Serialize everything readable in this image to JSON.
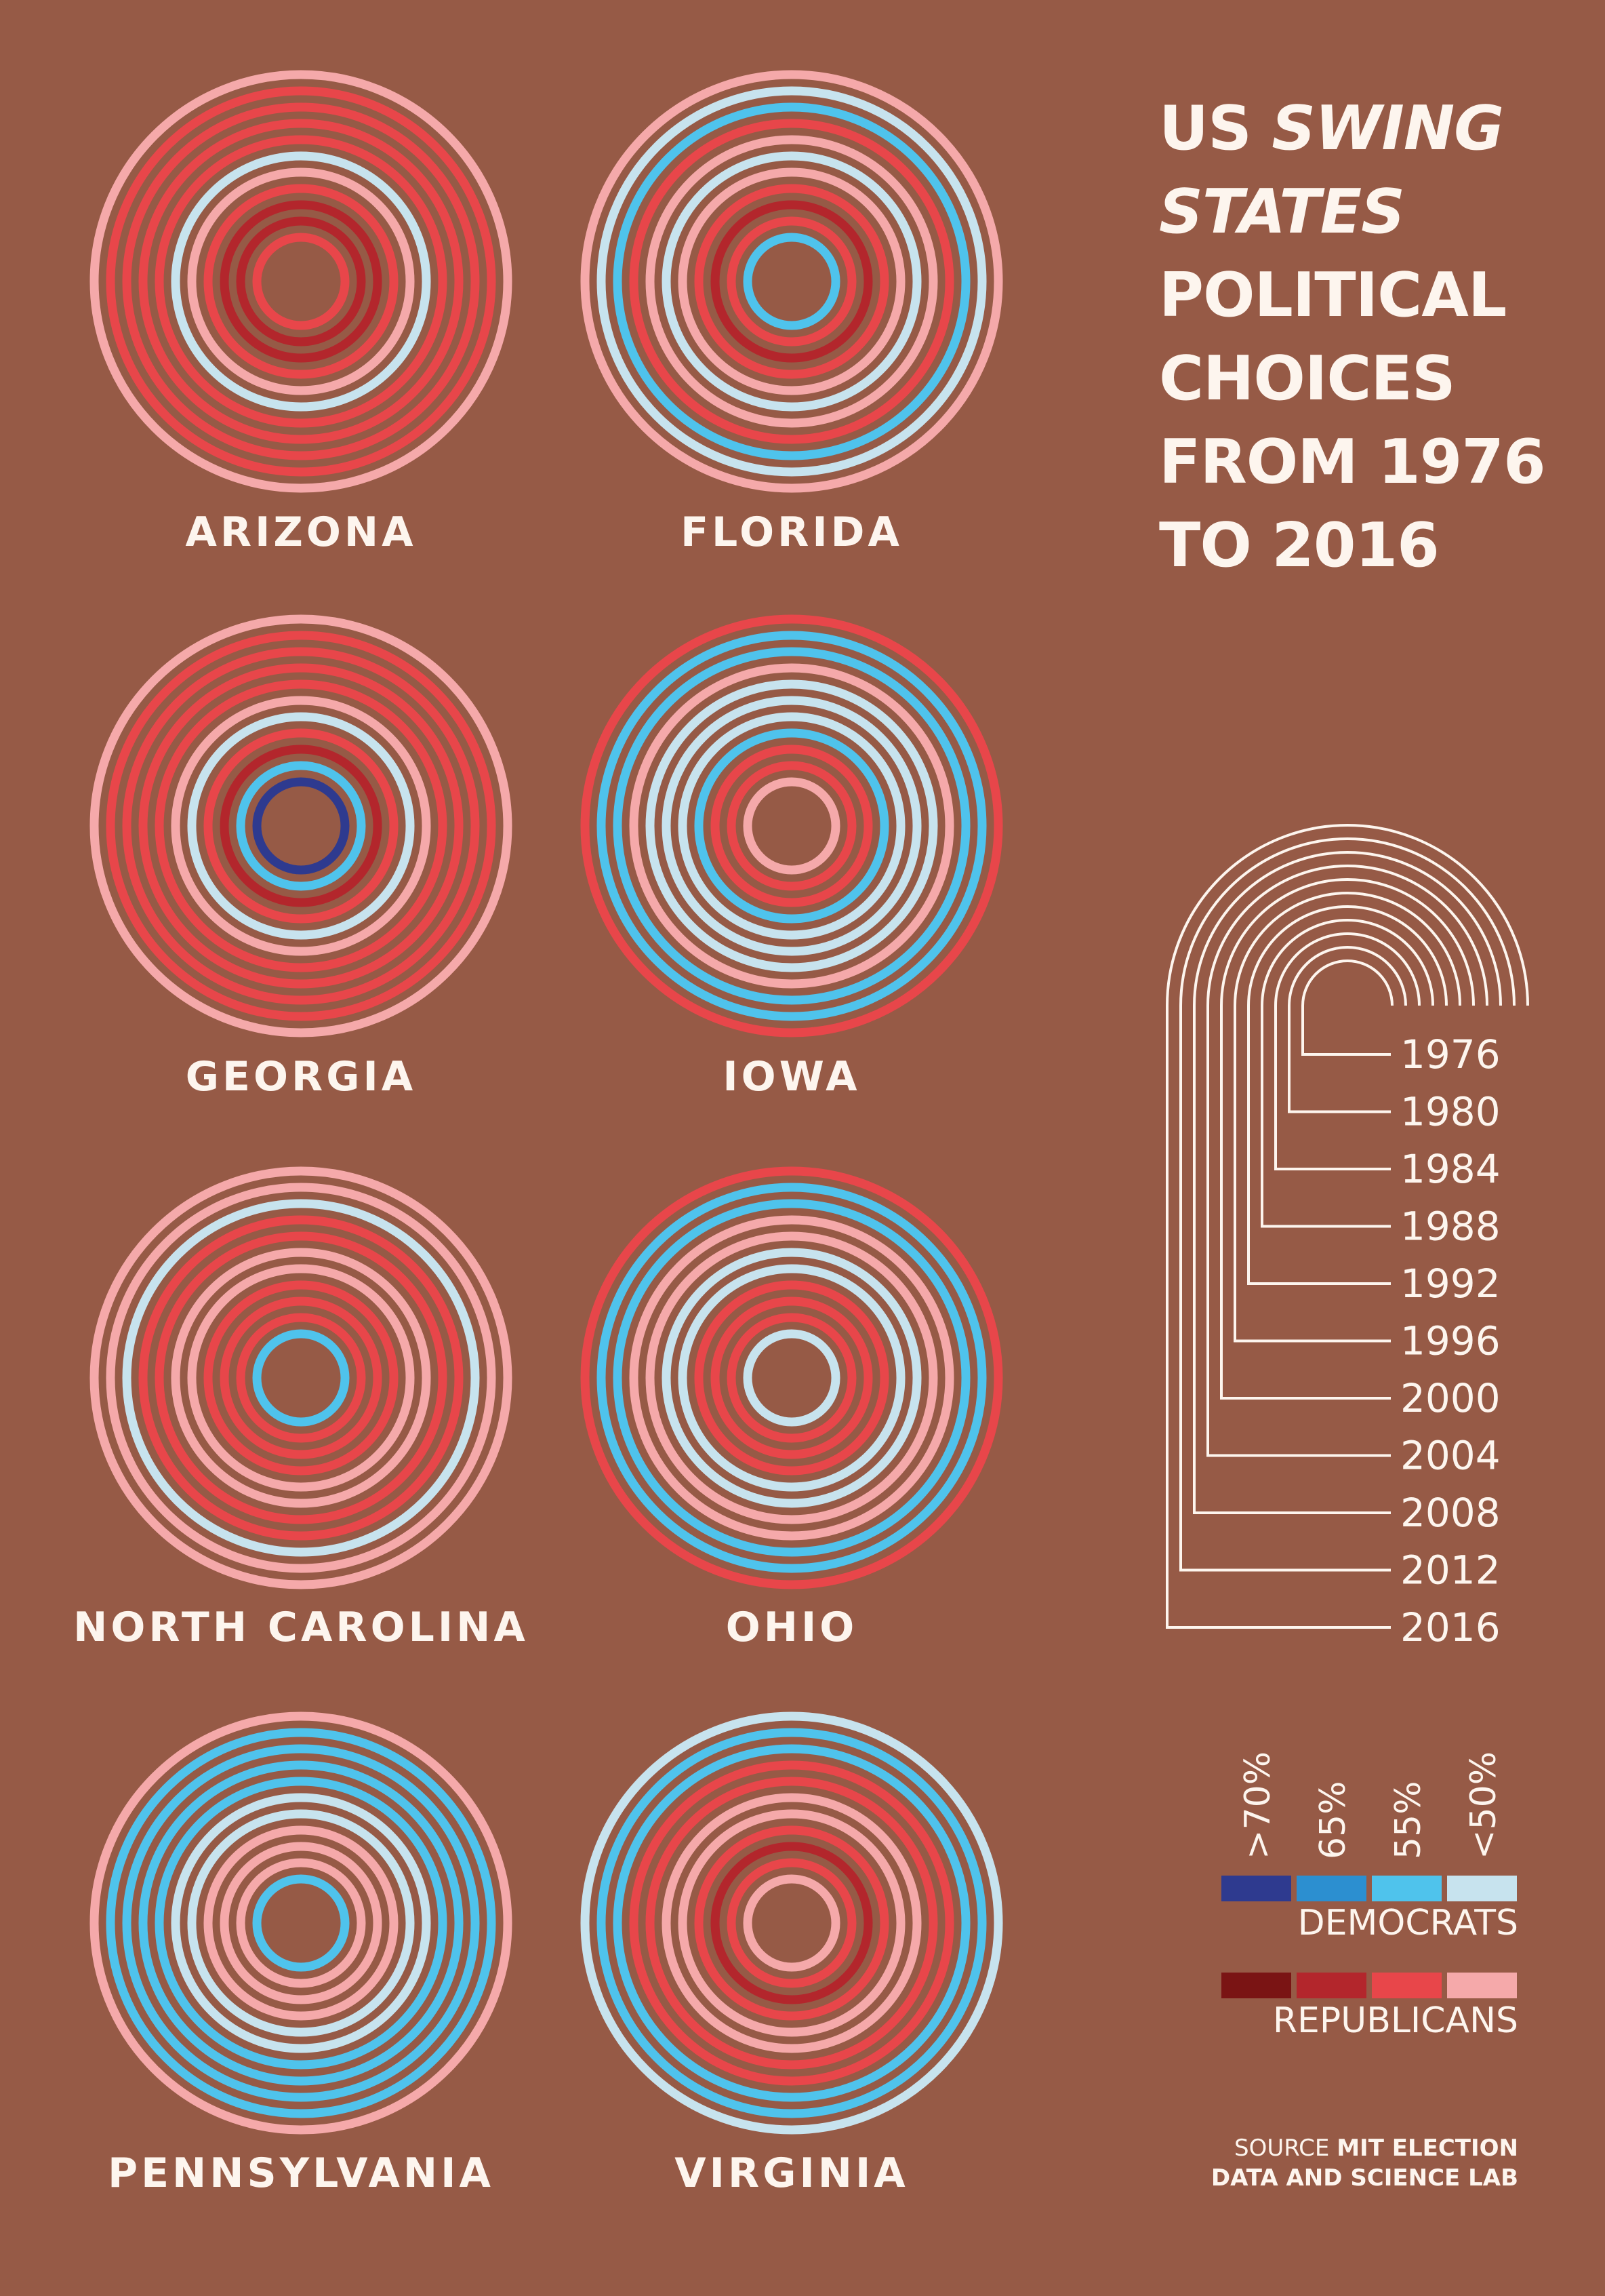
{
  "title": {
    "line1_pre": "US ",
    "line1_em": "SWING",
    "line2_em": "STATES",
    "line3": "POLITICAL",
    "line4": "CHOICES",
    "line5": "FROM 1976",
    "line6": "TO 2016"
  },
  "legend": {
    "percent_labels": [
      ">70%",
      "65%",
      "55%",
      "<50%"
    ],
    "democrats_label": "DEMOCRATS",
    "republicans_label": "REPUBLICANS",
    "democrat_colors": [
      "#2e3a8f",
      "#2c8fd0",
      "#4fc3ec",
      "#c7e3ee"
    ],
    "republican_colors": [
      "#7a1414",
      "#b3262c",
      "#e8464a",
      "#f5a9aa"
    ]
  },
  "year_key": {
    "years": [
      "1976",
      "1980",
      "1984",
      "1988",
      "1992",
      "1996",
      "2000",
      "2004",
      "2008",
      "2012",
      "2016"
    ]
  },
  "source": {
    "prefix": "SOURCE ",
    "bold_line1": "MIT ELECTION",
    "bold_line2": "DATA AND SCIENCE LAB"
  },
  "chart_data": {
    "type": "concentric-rings",
    "rings_order": "inner ring = 1976, outer ring = 2016",
    "years": [
      1976,
      1980,
      1984,
      1988,
      1992,
      1996,
      2000,
      2004,
      2008,
      2012,
      2016
    ],
    "color_scale": {
      "R<50": "#f5a9aa",
      "R55": "#e8464a",
      "R65": "#b3262c",
      "R>70": "#7a1414",
      "D<50": "#c7e3ee",
      "D55": "#4fc3ec",
      "D65": "#2c8fd0",
      "D>70": "#2e3a8f"
    },
    "states": [
      {
        "name": "ARIZONA",
        "rings": [
          "R55",
          "R65",
          "R65",
          "R55",
          "R<50",
          "D<50",
          "R55",
          "R55",
          "R55",
          "R55",
          "R<50"
        ]
      },
      {
        "name": "FLORIDA",
        "rings": [
          "D55",
          "R55",
          "R65",
          "R55",
          "R<50",
          "D<50",
          "R<50",
          "R55",
          "D55",
          "D<50",
          "R<50"
        ]
      },
      {
        "name": "GEORGIA",
        "rings": [
          "D>70",
          "D55",
          "R65",
          "R55",
          "D<50",
          "R<50",
          "R55",
          "R55",
          "R55",
          "R55",
          "R<50"
        ]
      },
      {
        "name": "IOWA",
        "rings": [
          "R<50",
          "R55",
          "R55",
          "D55",
          "D<50",
          "D<50",
          "D<50",
          "R<50",
          "D55",
          "D55",
          "R55"
        ]
      },
      {
        "name": "NORTH CAROLINA",
        "rings": [
          "D55",
          "R55",
          "R55",
          "R55",
          "R<50",
          "R<50",
          "R55",
          "R55",
          "D<50",
          "R<50",
          "R<50"
        ]
      },
      {
        "name": "OHIO",
        "rings": [
          "D<50",
          "R55",
          "R55",
          "R55",
          "D<50",
          "D<50",
          "R<50",
          "R<50",
          "D55",
          "D55",
          "R55"
        ]
      },
      {
        "name": "PENNSYLVANIA",
        "rings": [
          "D55",
          "R<50",
          "R<50",
          "R<50",
          "D<50",
          "D<50",
          "D55",
          "D55",
          "D55",
          "D55",
          "R<50"
        ]
      },
      {
        "name": "VIRGINIA",
        "rings": [
          "R<50",
          "R55",
          "R65",
          "R55",
          "R<50",
          "R<50",
          "R55",
          "R55",
          "D55",
          "D55",
          "D<50"
        ]
      }
    ]
  }
}
